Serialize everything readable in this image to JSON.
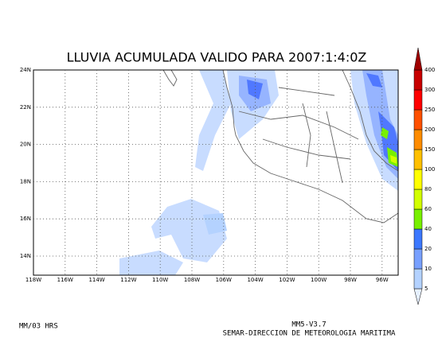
{
  "title": "LLUVIA ACUMULADA VALIDO PARA 2007:1:4:0Z",
  "map": {
    "lon_ticks": [
      "118W",
      "116W",
      "114W",
      "112W",
      "110W",
      "108W",
      "106W",
      "104W",
      "102W",
      "100W",
      "98W",
      "96W"
    ],
    "lat_ticks": [
      "24N",
      "22N",
      "20N",
      "18N",
      "16N",
      "14N"
    ]
  },
  "colorbar": {
    "levels": [
      5,
      10,
      20,
      40,
      60,
      80,
      100,
      150,
      200,
      250,
      300,
      400
    ],
    "colors": [
      "#e6f0ff",
      "#b4d2ff",
      "#78a0ff",
      "#3c78ff",
      "#78f000",
      "#d2ff00",
      "#ffff00",
      "#ffc000",
      "#ff8c00",
      "#ff5000",
      "#ff0000",
      "#c80000",
      "#a00000"
    ]
  },
  "footer": {
    "left": "MM/03 HRS",
    "model": "MM5-V3.7",
    "credit": "SEMAR-DIRECCION DE METEOROLOGIA MARITIMA"
  }
}
